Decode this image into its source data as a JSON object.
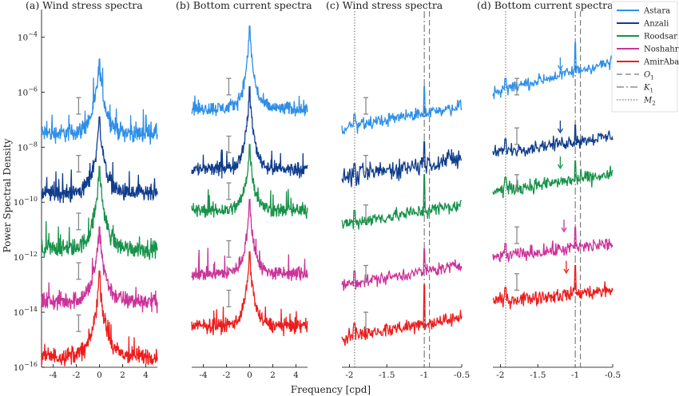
{
  "chart_data": {
    "type": "line",
    "ylabel": "Power Spectral Density",
    "xlabel": "Frequency [cpd]",
    "yscale": "log",
    "ylim": [
      1e-16,
      0.001
    ],
    "y_ticks": [
      {
        "exp": -4,
        "label": "10",
        "sup": "−4"
      },
      {
        "exp": -6,
        "label": "10",
        "sup": "−6"
      },
      {
        "exp": -8,
        "label": "10",
        "sup": "−8"
      },
      {
        "exp": -10,
        "label": "10",
        "sup": "−10"
      },
      {
        "exp": -12,
        "label": "10",
        "sup": "−12"
      },
      {
        "exp": -14,
        "label": "10",
        "sup": "−14"
      },
      {
        "exp": -16,
        "label": "10",
        "sup": "−16"
      }
    ],
    "stations": [
      {
        "name": "Astara",
        "color": "#2E8FE8"
      },
      {
        "name": "Anzali",
        "color": "#103D8C"
      },
      {
        "name": "Roodsar",
        "color": "#17924A"
      },
      {
        "name": "Noshahr",
        "color": "#CC3399"
      },
      {
        "name": "AmirAbad",
        "color": "#EE1C1C"
      }
    ],
    "tidal_lines": [
      {
        "name": "O",
        "sub": "1",
        "freq": -0.93,
        "dash": "7,4"
      },
      {
        "name": "K",
        "sub": "1",
        "freq": -1.0,
        "dash": "9,3,2,3"
      },
      {
        "name": "M",
        "sub": "2",
        "freq": -1.93,
        "dash": "1.5,2"
      }
    ],
    "panels": [
      {
        "title": "(a) Wind stress spectra",
        "xlim": [
          -5,
          5
        ],
        "x_ticks": [
          {
            "v": -4,
            "label": "-4"
          },
          {
            "v": -2,
            "label": "-2"
          },
          {
            "v": 0,
            "label": "0"
          },
          {
            "v": 2,
            "label": "2"
          },
          {
            "v": 4,
            "label": "4"
          }
        ],
        "show_y_axis": true,
        "tidal": false,
        "mode": "peak",
        "series": [
          {
            "name": "Astara",
            "level_exp": -7.5,
            "peak_exp": -5.0,
            "width": 0.55,
            "noise": 0.25
          },
          {
            "name": "Anzali",
            "level_exp": -9.7,
            "peak_exp": -7.1,
            "width": 0.55,
            "noise": 0.25
          },
          {
            "name": "Roodsar",
            "level_exp": -11.7,
            "peak_exp": -8.9,
            "width": 0.55,
            "noise": 0.25
          },
          {
            "name": "Noshahr",
            "level_exp": -13.6,
            "peak_exp": -11.1,
            "width": 0.55,
            "noise": 0.25
          },
          {
            "name": "AmirAbad",
            "level_exp": -15.6,
            "peak_exp": -12.7,
            "width": 0.55,
            "noise": 0.25
          }
        ],
        "error_bars": [
          {
            "x": -1.8,
            "y_exp": -6.5
          },
          {
            "x": -1.8,
            "y_exp": -8.6
          },
          {
            "x": -1.8,
            "y_exp": -10.7
          },
          {
            "x": -1.8,
            "y_exp": -12.5
          },
          {
            "x": -1.8,
            "y_exp": -14.4
          }
        ]
      },
      {
        "title": "(b) Bottom current spectra",
        "xlim": [
          -5,
          5
        ],
        "x_ticks": [
          {
            "v": -4,
            "label": "-4"
          },
          {
            "v": -2,
            "label": "-2"
          },
          {
            "v": 0,
            "label": "0"
          },
          {
            "v": 2,
            "label": "2"
          },
          {
            "v": 4,
            "label": "4"
          }
        ],
        "show_y_axis": false,
        "tidal": false,
        "mode": "peak",
        "series": [
          {
            "name": "Astara",
            "level_exp": -6.6,
            "peak_exp": -3.8,
            "width": 0.45,
            "noise": 0.2
          },
          {
            "name": "Anzali",
            "level_exp": -8.8,
            "peak_exp": -6.0,
            "width": 0.45,
            "noise": 0.2
          },
          {
            "name": "Roodsar",
            "level_exp": -10.3,
            "peak_exp": -8.1,
            "width": 0.45,
            "noise": 0.2
          },
          {
            "name": "Noshahr",
            "level_exp": -12.6,
            "peak_exp": -10.1,
            "width": 0.45,
            "noise": 0.2
          },
          {
            "name": "AmirAbad",
            "level_exp": -14.5,
            "peak_exp": -12.0,
            "width": 0.45,
            "noise": 0.2
          }
        ],
        "error_bars": [
          {
            "x": -1.8,
            "y_exp": -5.8
          },
          {
            "x": -1.8,
            "y_exp": -7.9
          },
          {
            "x": -1.8,
            "y_exp": -9.6
          },
          {
            "x": -1.8,
            "y_exp": -11.7
          },
          {
            "x": -1.8,
            "y_exp": -13.5
          }
        ]
      },
      {
        "title": "(c) Wind stress spectra",
        "xlim": [
          -2.1,
          -0.5
        ],
        "x_ticks": [
          {
            "v": -2,
            "label": "-2"
          },
          {
            "v": -1.5,
            "label": "-1.5"
          },
          {
            "v": -1,
            "label": "-1"
          },
          {
            "v": -0.5,
            "label": "-0.5"
          }
        ],
        "show_y_axis": false,
        "tidal": true,
        "mode": "ramp",
        "series": [
          {
            "name": "Astara",
            "start_exp": -7.3,
            "end_exp": -6.5,
            "spike_exp": -5.8,
            "noise": 0.18
          },
          {
            "name": "Anzali",
            "start_exp": -9.1,
            "end_exp": -8.4,
            "spike_exp": -7.8,
            "noise": 0.28
          },
          {
            "name": "Roodsar",
            "start_exp": -10.8,
            "end_exp": -10.1,
            "spike_exp": -9.0,
            "noise": 0.2
          },
          {
            "name": "Noshahr",
            "start_exp": -13.0,
            "end_exp": -12.3,
            "spike_exp": -11.7,
            "noise": 0.18
          },
          {
            "name": "AmirAbad",
            "start_exp": -14.9,
            "end_exp": -14.2,
            "spike_exp": -13.0,
            "noise": 0.22
          }
        ],
        "error_bars": [
          {
            "x": -1.78,
            "y_exp": -6.5
          },
          {
            "x": -1.78,
            "y_exp": -8.6
          },
          {
            "x": -1.78,
            "y_exp": -10.4
          },
          {
            "x": -1.78,
            "y_exp": -12.6
          },
          {
            "x": -1.78,
            "y_exp": -14.3
          }
        ]
      },
      {
        "title": "(d) Bottom current spectra",
        "xlim": [
          -2.1,
          -0.5
        ],
        "x_ticks": [
          {
            "v": -2,
            "label": "-2"
          },
          {
            "v": -1.5,
            "label": "-1.5"
          },
          {
            "v": -1,
            "label": "-1"
          },
          {
            "v": -0.5,
            "label": "-0.5"
          }
        ],
        "show_y_axis": false,
        "tidal": true,
        "mode": "ramp",
        "series": [
          {
            "name": "Astara",
            "start_exp": -6.0,
            "end_exp": -4.9,
            "spike_exp": -4.2,
            "noise": 0.18
          },
          {
            "name": "Anzali",
            "start_exp": -8.2,
            "end_exp": -7.6,
            "spike_exp": -7.2,
            "noise": 0.18
          },
          {
            "name": "Roodsar",
            "start_exp": -9.6,
            "end_exp": -9.0,
            "spike_exp": -8.5,
            "noise": 0.2
          },
          {
            "name": "Noshahr",
            "start_exp": -12.0,
            "end_exp": -11.5,
            "spike_exp": -10.9,
            "noise": 0.2
          },
          {
            "name": "AmirAbad",
            "start_exp": -13.6,
            "end_exp": -13.2,
            "spike_exp": -12.3,
            "noise": 0.2
          }
        ],
        "error_bars": [
          {
            "x": -1.78,
            "y_exp": -5.8
          },
          {
            "x": -1.78,
            "y_exp": -7.6
          },
          {
            "x": -1.78,
            "y_exp": -9.3
          },
          {
            "x": -1.78,
            "y_exp": -11.2
          },
          {
            "x": -1.78,
            "y_exp": -12.9
          }
        ],
        "arrows": [
          {
            "station": "Astara",
            "x": -1.2,
            "y_exp": -5.2
          },
          {
            "station": "Anzali",
            "x": -1.2,
            "y_exp": -7.5
          },
          {
            "station": "Roodsar",
            "x": -1.2,
            "y_exp": -8.8
          },
          {
            "station": "Noshahr",
            "x": -1.15,
            "y_exp": -11.1
          },
          {
            "station": "AmirAbad",
            "x": -1.12,
            "y_exp": -12.6
          }
        ]
      }
    ]
  }
}
